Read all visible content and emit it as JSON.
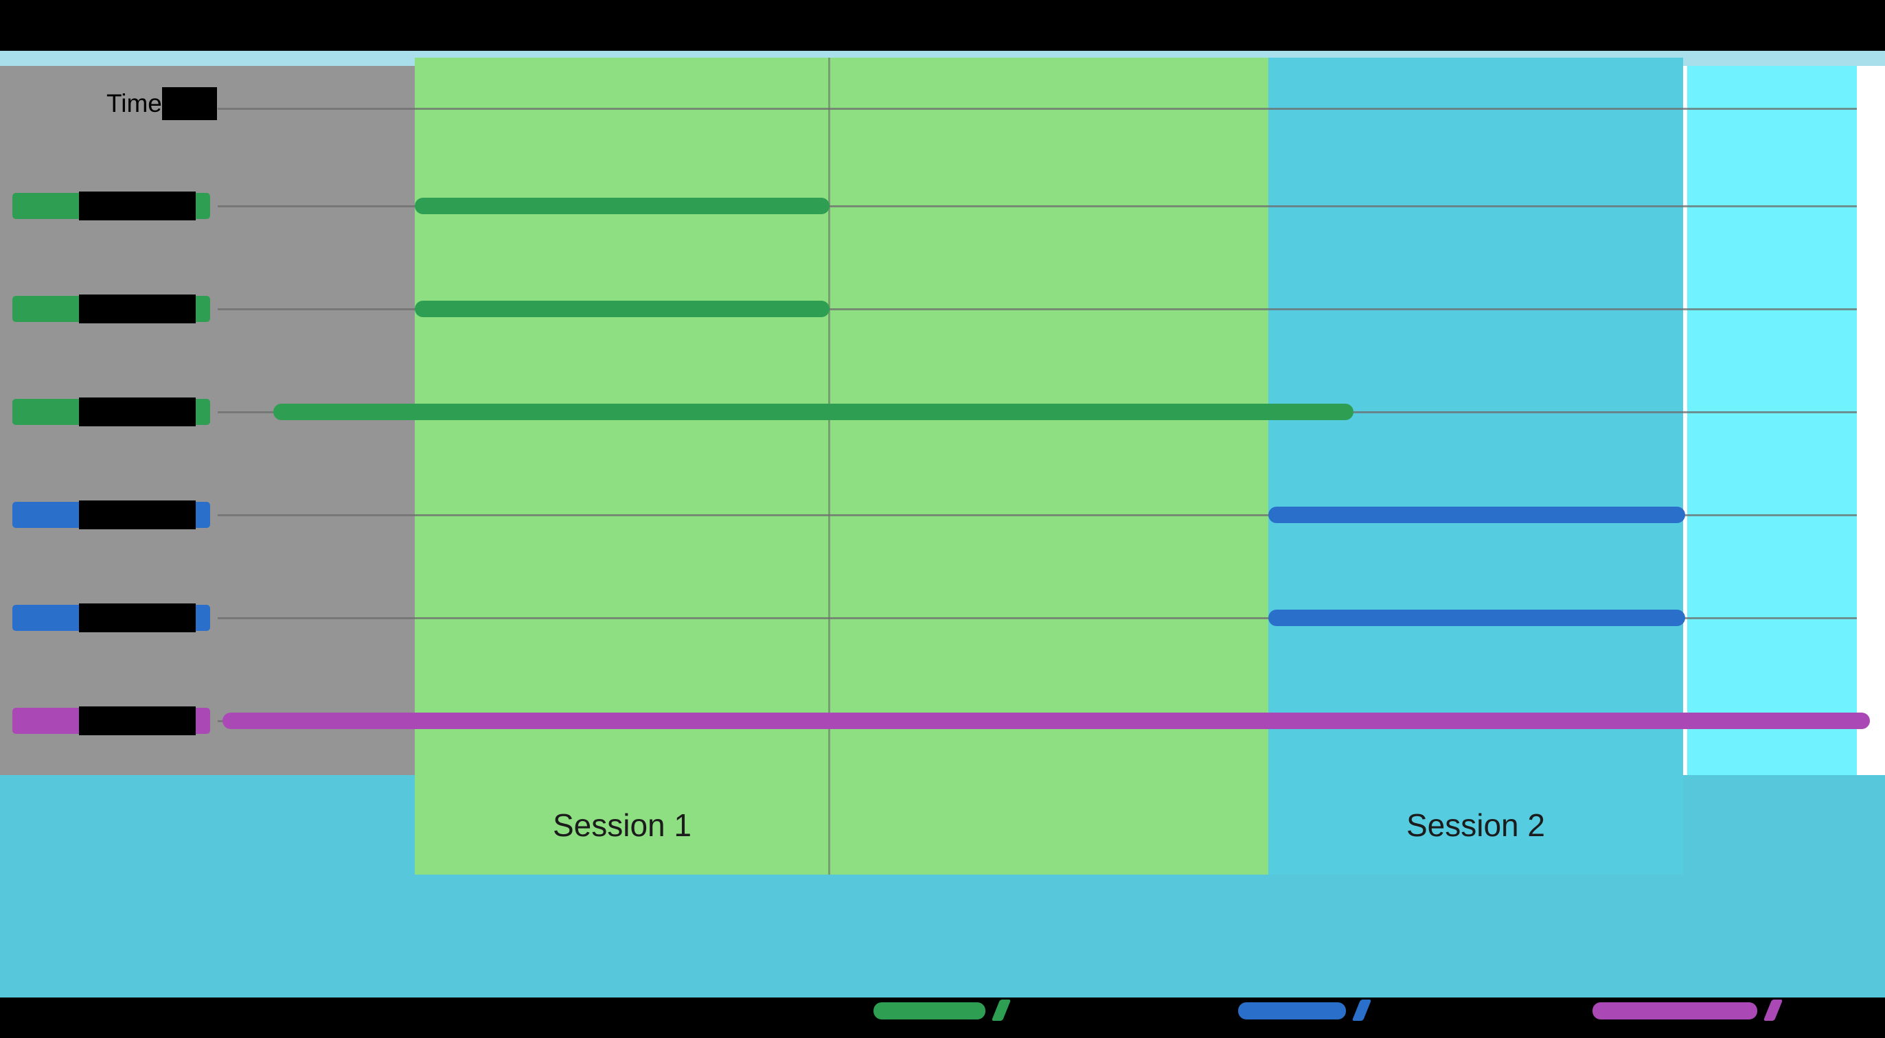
{
  "header": {
    "time_label": "Time"
  },
  "colors": {
    "background": "#FFFFFF",
    "letterbox_black": "#000000",
    "top_strip": "#A8DFEA",
    "labels_panel_gray": "#959595",
    "bottom_band": "#57C8DC",
    "gridline_gray": "#8A8A8A",
    "session1_band_green": "#8EDE82",
    "session2_band_cyan": "#55CCE0",
    "right_band_aqua": "#70F2FF",
    "series_green": "#2E9E52",
    "series_blue": "#2A6FC9",
    "series_purple": "#AA49B6"
  },
  "chart_data": {
    "type": "bar",
    "subtype": "horizontal-gantt-timeline",
    "title": "",
    "xlabel": "Time",
    "ylabel": "",
    "x_axis": {
      "units": "fraction of full image width (no numeric tick labels visible)",
      "range": [
        0,
        1
      ],
      "ticks": []
    },
    "grid": true,
    "legend_position": "bottom black band (legend text hidden/redacted; only color swatches visible)",
    "sessions": [
      {
        "label": "Session 1",
        "start": 0.22,
        "end": 0.673,
        "band_color": "#8EDE82"
      },
      {
        "label": "Session 2",
        "start": 0.673,
        "end": 0.893,
        "band_color": "#55CCE0"
      }
    ],
    "extra_bands": [
      {
        "name": "right-highlight-band",
        "start": 0.895,
        "end": 0.985,
        "color": "#70F2FF"
      }
    ],
    "rows": [
      {
        "label": "",
        "label_redacted": true,
        "color": "#2E9E52",
        "start": 0.22,
        "end": 0.44
      },
      {
        "label": "",
        "label_redacted": true,
        "color": "#2E9E52",
        "start": 0.22,
        "end": 0.44
      },
      {
        "label": "",
        "label_redacted": true,
        "color": "#2E9E52",
        "start": 0.145,
        "end": 0.718
      },
      {
        "label": "",
        "label_redacted": true,
        "color": "#2A6FC9",
        "start": 0.673,
        "end": 0.894
      },
      {
        "label": "",
        "label_redacted": true,
        "color": "#2A6FC9",
        "start": 0.673,
        "end": 0.894
      },
      {
        "label": "",
        "label_redacted": true,
        "color": "#AA49B6",
        "start": 0.118,
        "end": 0.992
      }
    ],
    "legend": [
      {
        "label": "",
        "label_redacted": true,
        "color": "#2E9E52"
      },
      {
        "label": "",
        "label_redacted": true,
        "color": "#2A6FC9"
      },
      {
        "label": "",
        "label_redacted": true,
        "color": "#AA49B6"
      }
    ]
  }
}
